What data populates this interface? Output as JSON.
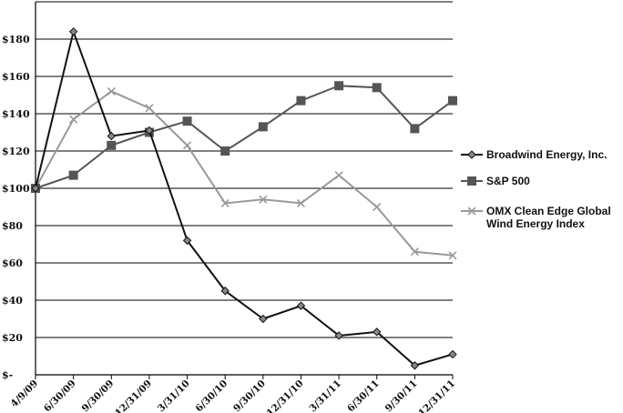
{
  "chart_data": {
    "type": "line",
    "title": "",
    "xlabel": "",
    "ylabel": "",
    "categories": [
      "4/9/09",
      "6/30/09",
      "9/30/09",
      "12/31/09",
      "3/31/10",
      "6/30/10",
      "9/30/10",
      "12/31/10",
      "3/31/11",
      "6/30/11",
      "9/30/11",
      "12/31/11"
    ],
    "y_tick_labels": [
      "$-",
      "$20",
      "$40",
      "$60",
      "$80",
      "$100",
      "$120",
      "$140",
      "$160",
      "$180"
    ],
    "ylim": [
      0,
      200
    ],
    "y_tick_step": 20,
    "grid": true,
    "legend_position": "right",
    "series": [
      {
        "name": "Broadwind Energy, Inc.",
        "color": "#111111",
        "marker": "diamond",
        "values": [
          100,
          184,
          128,
          131,
          72,
          45,
          30,
          37,
          21,
          23,
          5,
          11
        ]
      },
      {
        "name": "S&P 500",
        "color": "#555555",
        "marker": "square",
        "values": [
          100,
          107,
          123,
          130,
          136,
          120,
          133,
          147,
          155,
          154,
          132,
          147
        ]
      },
      {
        "name": "OMX Clean Edge Global Wind Energy Index",
        "name_lines": [
          "OMX Clean Edge Global",
          "Wind Energy Index"
        ],
        "color": "#999999",
        "marker": "x",
        "values": [
          100,
          137,
          152,
          143,
          123,
          92,
          94,
          92,
          107,
          90,
          66,
          64
        ]
      }
    ]
  }
}
